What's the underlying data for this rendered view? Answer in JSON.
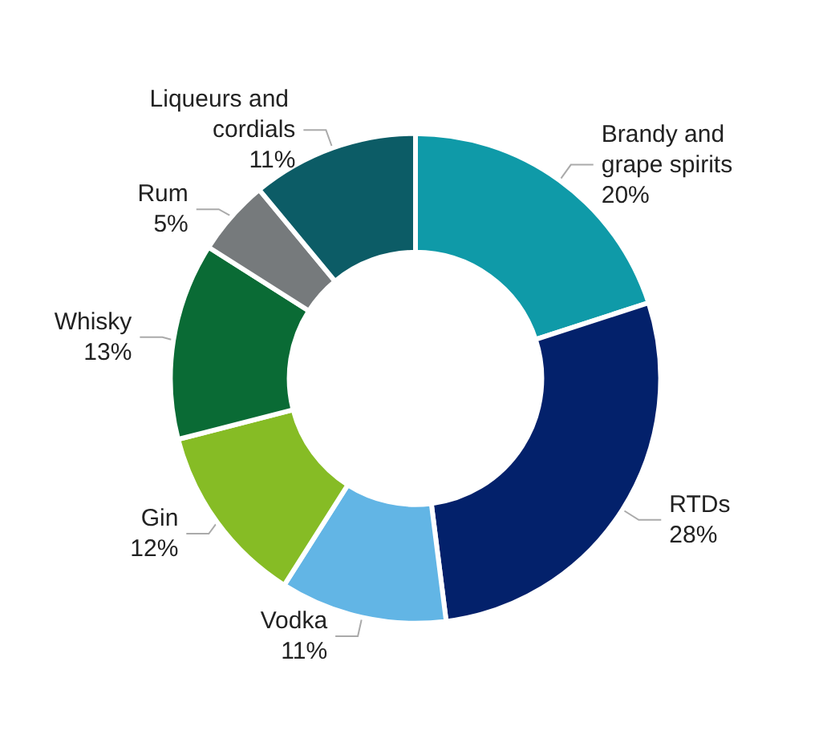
{
  "chart_data": {
    "type": "donut",
    "categories": [
      "Brandy and grape spirits",
      "RTDs",
      "Vodka",
      "Gin",
      "Whisky",
      "Rum",
      "Liqueurs and cordials"
    ],
    "values": [
      20,
      28,
      11,
      12,
      13,
      5,
      11
    ],
    "value_labels": [
      "20%",
      "28%",
      "11%",
      "12%",
      "13%",
      "5%",
      "11%"
    ],
    "colors": [
      "#0f9aa8",
      "#03216b",
      "#62b5e5",
      "#86bc25",
      "#0a6b35",
      "#767a7c",
      "#0c5c66"
    ],
    "legend": false
  }
}
